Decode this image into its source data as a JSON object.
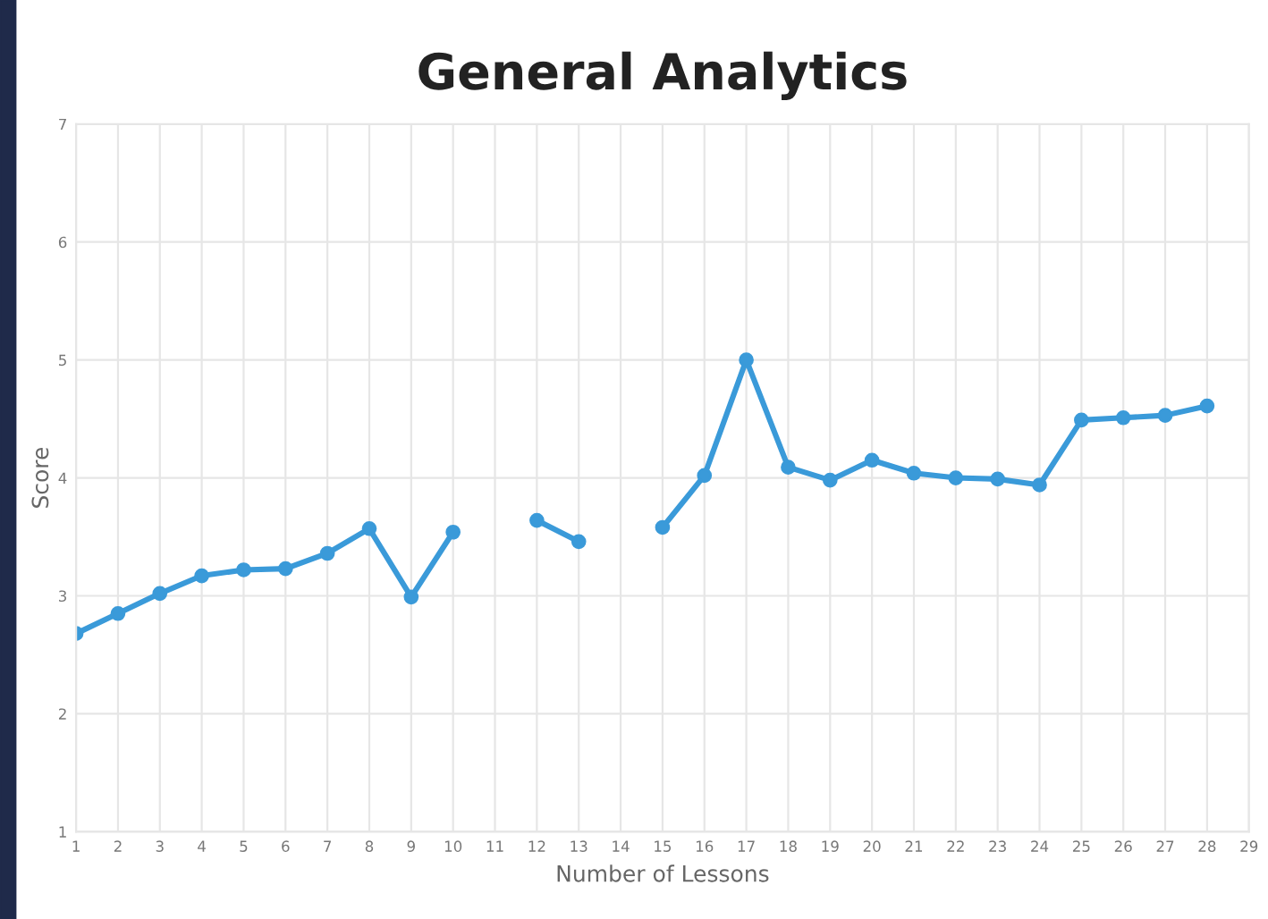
{
  "chart_data": {
    "type": "line",
    "title": "General Analytics",
    "xlabel": "Number of Lessons",
    "ylabel": "Score",
    "categories": [
      "1",
      "2",
      "3",
      "4",
      "5",
      "6",
      "7",
      "8",
      "9",
      "10",
      "11",
      "12",
      "13",
      "14",
      "15",
      "16",
      "17",
      "18",
      "19",
      "20",
      "21",
      "22",
      "23",
      "24",
      "25",
      "26",
      "27",
      "28",
      "29"
    ],
    "series": [
      {
        "color": "#3a9ad9",
        "values": [
          2.68,
          2.85,
          3.02,
          3.17,
          3.22,
          3.23,
          3.36,
          3.57,
          2.99,
          3.54,
          null,
          3.64,
          3.46,
          null,
          3.58,
          4.02,
          5.0,
          4.09,
          3.98,
          4.15,
          4.04,
          4.0,
          3.99,
          3.94,
          4.49,
          4.51,
          4.53,
          4.61,
          null
        ]
      }
    ],
    "ylim": [
      1,
      7
    ],
    "yticks": [
      1,
      2,
      3,
      4,
      5,
      6,
      7
    ],
    "grid": true,
    "marker": "circle",
    "line_style": "solid",
    "legend": false
  }
}
